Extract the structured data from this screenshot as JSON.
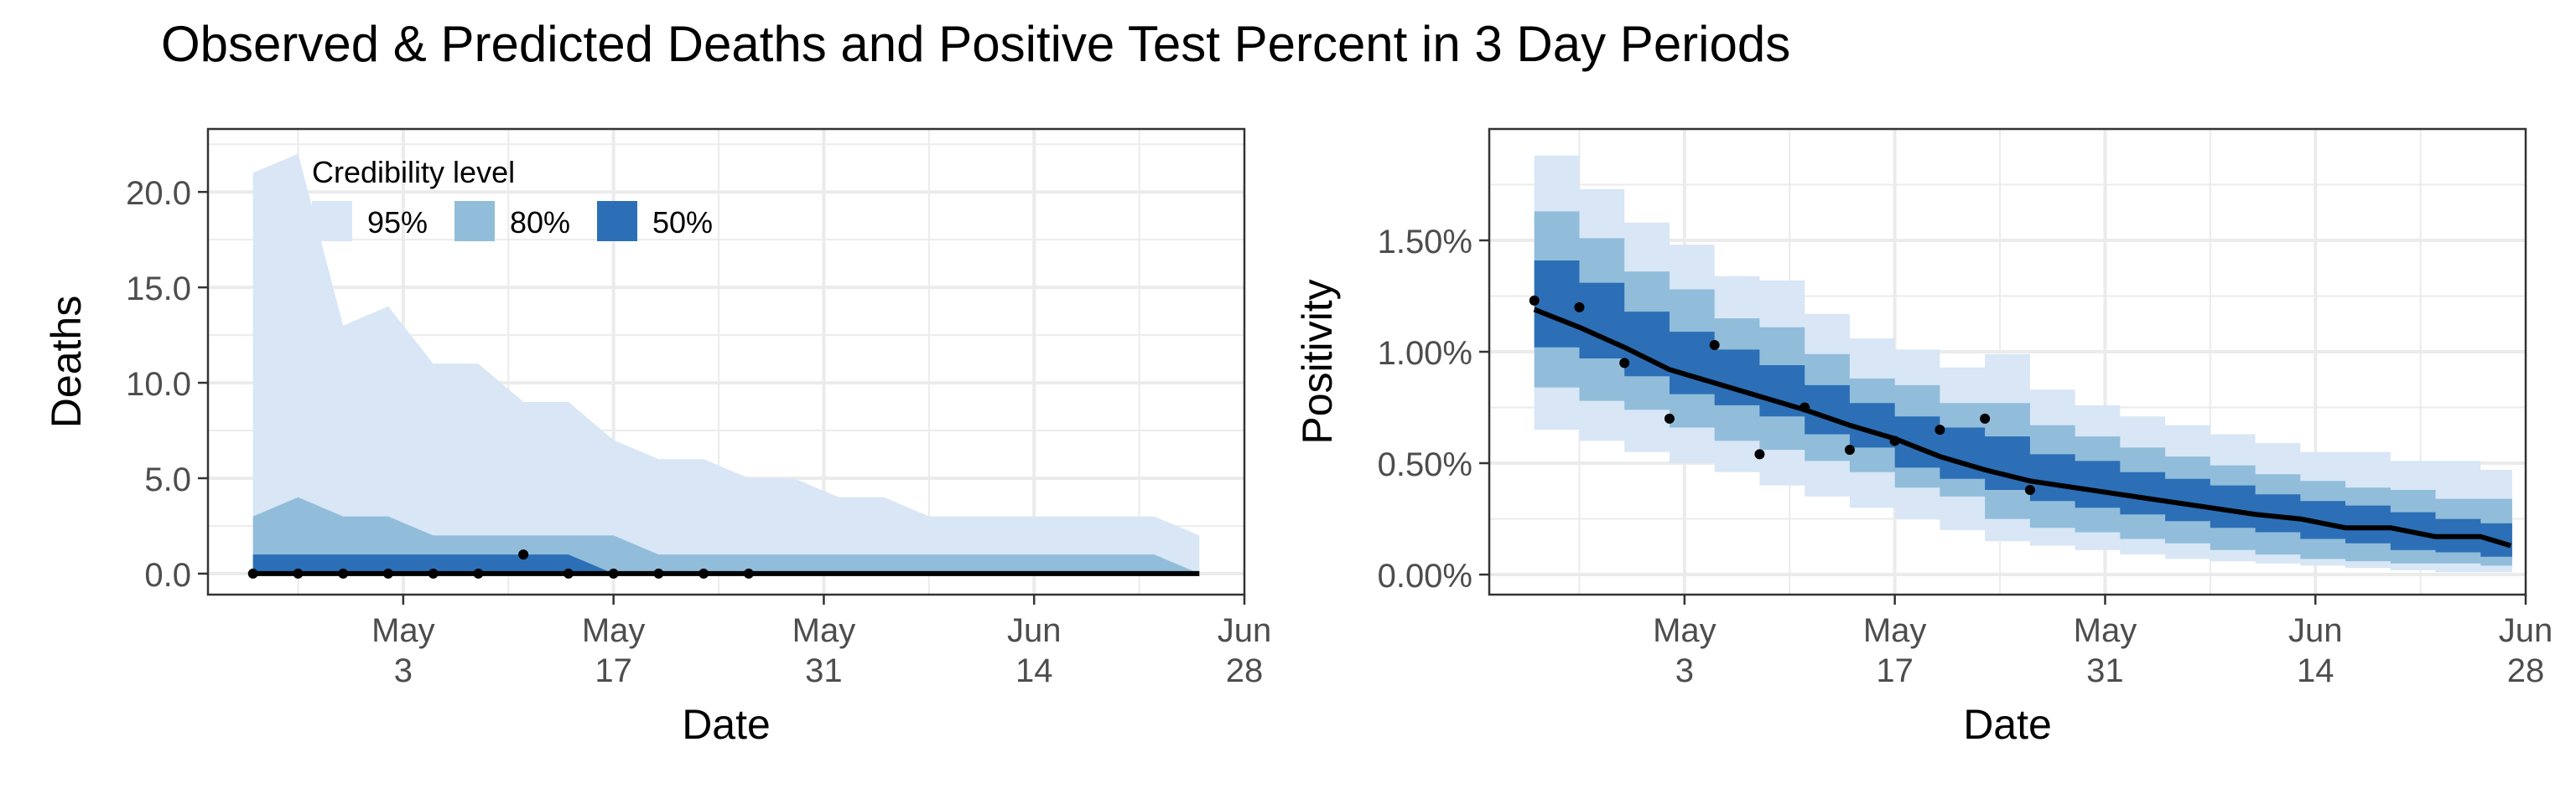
{
  "page": {
    "title": "Observed & Predicted Deaths and Positive Test Percent in 3 Day Periods"
  },
  "colors": {
    "ci95": "#D8E6F5",
    "ci80": "#91BDDB",
    "ci50": "#2C6FB6",
    "line": "#000000",
    "grid": "#EBEBEB",
    "frame": "#333333"
  },
  "chart_data": [
    {
      "type": "area",
      "xlabel": "Date",
      "ylabel": "Deaths",
      "x_ticks": [
        {
          "date": "2020-05-03",
          "line1": "May",
          "line2": "3"
        },
        {
          "date": "2020-05-17",
          "line1": "May",
          "line2": "17"
        },
        {
          "date": "2020-05-31",
          "line1": "May",
          "line2": "31"
        },
        {
          "date": "2020-06-14",
          "line1": "Jun",
          "line2": "14"
        },
        {
          "date": "2020-06-28",
          "line1": "Jun",
          "line2": "28"
        }
      ],
      "y_ticks": [
        "0.0",
        "5.0",
        "10.0",
        "15.0",
        "20.0"
      ],
      "y_tick_values": [
        0,
        5,
        10,
        15,
        20
      ],
      "xlim": [
        "2020-04-20",
        "2020-06-28"
      ],
      "ylim": [
        -1.1,
        23.3
      ],
      "grid": true,
      "legend": {
        "title": "Credibility level",
        "placement": "top-left",
        "items": [
          {
            "label": "95%",
            "color_key": "ci95"
          },
          {
            "label": "80%",
            "color_key": "ci80"
          },
          {
            "label": "50%",
            "color_key": "ci50"
          }
        ]
      },
      "band_dates": [
        "2020-04-23",
        "2020-04-26",
        "2020-04-29",
        "2020-05-02",
        "2020-05-05",
        "2020-05-08",
        "2020-05-11",
        "2020-05-14",
        "2020-05-17",
        "2020-05-20",
        "2020-05-23",
        "2020-05-26",
        "2020-05-29",
        "2020-06-01",
        "2020-06-04",
        "2020-06-07",
        "2020-06-10",
        "2020-06-13",
        "2020-06-16",
        "2020-06-19",
        "2020-06-22",
        "2020-06-25"
      ],
      "band_95": {
        "lower": [
          0,
          0,
          0,
          0,
          0,
          0,
          0,
          0,
          0,
          0,
          0,
          0,
          0,
          0,
          0,
          0,
          0,
          0,
          0,
          0,
          0,
          0
        ],
        "upper": [
          21,
          22,
          13,
          14,
          11,
          11,
          9,
          9,
          7,
          6,
          6,
          5,
          5,
          4,
          4,
          3,
          3,
          3,
          3,
          3,
          3,
          2
        ]
      },
      "band_80": {
        "lower": [
          0,
          0,
          0,
          0,
          0,
          0,
          0,
          0,
          0,
          0,
          0,
          0,
          0,
          0,
          0,
          0,
          0,
          0,
          0,
          0,
          0,
          0
        ],
        "upper": [
          3,
          4,
          3,
          3,
          2,
          2,
          2,
          2,
          2,
          1,
          1,
          1,
          1,
          1,
          1,
          1,
          1,
          1,
          1,
          1,
          1,
          0
        ]
      },
      "band_50": {
        "lower": [
          0,
          0,
          0,
          0,
          0,
          0,
          0,
          0,
          0,
          0,
          0,
          0,
          0,
          0,
          0,
          0,
          0,
          0,
          0,
          0,
          0,
          0
        ],
        "upper": [
          1,
          1,
          1,
          1,
          1,
          1,
          1,
          1,
          0,
          0,
          0,
          0,
          0,
          0,
          0,
          0,
          0,
          0,
          0,
          0,
          0,
          0
        ]
      },
      "median": [
        0,
        0,
        0,
        0,
        0,
        0,
        0,
        0,
        0,
        0,
        0,
        0,
        0,
        0,
        0,
        0,
        0,
        0,
        0,
        0,
        0,
        0
      ],
      "observed": [
        {
          "date": "2020-04-23",
          "value": 0
        },
        {
          "date": "2020-04-26",
          "value": 0
        },
        {
          "date": "2020-04-29",
          "value": 0
        },
        {
          "date": "2020-05-02",
          "value": 0
        },
        {
          "date": "2020-05-05",
          "value": 0
        },
        {
          "date": "2020-05-08",
          "value": 0
        },
        {
          "date": "2020-05-11",
          "value": 1
        },
        {
          "date": "2020-05-14",
          "value": 0
        },
        {
          "date": "2020-05-17",
          "value": 0
        },
        {
          "date": "2020-05-20",
          "value": 0
        },
        {
          "date": "2020-05-23",
          "value": 0
        },
        {
          "date": "2020-05-26",
          "value": 0
        }
      ]
    },
    {
      "type": "area",
      "xlabel": "Date",
      "ylabel": "Positivity",
      "x_ticks": [
        {
          "date": "2020-05-03",
          "line1": "May",
          "line2": "3"
        },
        {
          "date": "2020-05-17",
          "line1": "May",
          "line2": "17"
        },
        {
          "date": "2020-05-31",
          "line1": "May",
          "line2": "31"
        },
        {
          "date": "2020-06-14",
          "line1": "Jun",
          "line2": "14"
        },
        {
          "date": "2020-06-28",
          "line1": "Jun",
          "line2": "28"
        }
      ],
      "y_ticks": [
        "0.00%",
        "0.50%",
        "1.00%",
        "1.50%"
      ],
      "y_tick_values": [
        0,
        0.005,
        0.01,
        0.015
      ],
      "xlim": [
        "2020-04-20",
        "2020-06-28"
      ],
      "ylim": [
        -0.0009,
        0.02
      ],
      "grid": true,
      "band_dates": [
        "2020-04-23",
        "2020-04-26",
        "2020-04-29",
        "2020-05-02",
        "2020-05-05",
        "2020-05-08",
        "2020-05-11",
        "2020-05-14",
        "2020-05-17",
        "2020-05-20",
        "2020-05-23",
        "2020-05-26",
        "2020-05-29",
        "2020-06-01",
        "2020-06-04",
        "2020-06-07",
        "2020-06-10",
        "2020-06-13",
        "2020-06-16",
        "2020-06-19",
        "2020-06-22",
        "2020-06-25"
      ],
      "band_95": {
        "lower": [
          0.0065,
          0.006,
          0.0055,
          0.005,
          0.0046,
          0.004,
          0.0035,
          0.003,
          0.0025,
          0.002,
          0.0015,
          0.0013,
          0.0011,
          0.0009,
          0.0007,
          0.0006,
          0.0005,
          0.0004,
          0.0003,
          0.0002,
          0.0001,
          0.0001
        ],
        "upper": [
          0.0188,
          0.0173,
          0.0158,
          0.0148,
          0.0134,
          0.0132,
          0.0117,
          0.0106,
          0.0101,
          0.0093,
          0.0099,
          0.0083,
          0.0076,
          0.0071,
          0.0067,
          0.0063,
          0.0059,
          0.0055,
          0.0055,
          0.0051,
          0.0051,
          0.0047
        ]
      },
      "band_80": {
        "lower": [
          0.0084,
          0.0078,
          0.0074,
          0.0066,
          0.006,
          0.0056,
          0.0051,
          0.0046,
          0.0039,
          0.0035,
          0.0025,
          0.0021,
          0.0019,
          0.0016,
          0.0014,
          0.0011,
          0.0009,
          0.0007,
          0.0006,
          0.0005,
          0.0005,
          0.0004
        ],
        "upper": [
          0.0163,
          0.0151,
          0.0136,
          0.0128,
          0.0115,
          0.0111,
          0.0099,
          0.0088,
          0.0085,
          0.0077,
          0.0077,
          0.0067,
          0.0062,
          0.0057,
          0.0053,
          0.0049,
          0.0045,
          0.0042,
          0.0039,
          0.0038,
          0.0034,
          0.0034
        ]
      },
      "band_50": {
        "lower": [
          0.0102,
          0.0097,
          0.0089,
          0.0081,
          0.0076,
          0.0071,
          0.0063,
          0.0057,
          0.0048,
          0.0043,
          0.0038,
          0.0033,
          0.003,
          0.0027,
          0.0024,
          0.0021,
          0.0019,
          0.0016,
          0.0014,
          0.0011,
          0.001,
          0.0008
        ],
        "upper": [
          0.0141,
          0.0131,
          0.0118,
          0.0109,
          0.0101,
          0.0094,
          0.0085,
          0.0077,
          0.0071,
          0.0066,
          0.0062,
          0.0054,
          0.0051,
          0.0046,
          0.0043,
          0.004,
          0.0036,
          0.0033,
          0.0031,
          0.0028,
          0.0025,
          0.0023
        ]
      },
      "median": [
        0.0119,
        0.0111,
        0.0102,
        0.0092,
        0.0086,
        0.008,
        0.0074,
        0.0067,
        0.0061,
        0.0053,
        0.0047,
        0.0042,
        0.0039,
        0.0036,
        0.0033,
        0.003,
        0.0027,
        0.0025,
        0.0021,
        0.0021,
        0.0017,
        0.0017
      ],
      "median_end": {
        "date": "2020-06-27",
        "value": 0.0013
      },
      "observed": [
        {
          "date": "2020-04-23",
          "value": 0.0123
        },
        {
          "date": "2020-04-26",
          "value": 0.012
        },
        {
          "date": "2020-04-29",
          "value": 0.0095
        },
        {
          "date": "2020-05-02",
          "value": 0.007
        },
        {
          "date": "2020-05-05",
          "value": 0.0103
        },
        {
          "date": "2020-05-08",
          "value": 0.0054
        },
        {
          "date": "2020-05-11",
          "value": 0.0075
        },
        {
          "date": "2020-05-14",
          "value": 0.0056
        },
        {
          "date": "2020-05-17",
          "value": 0.006
        },
        {
          "date": "2020-05-20",
          "value": 0.0065
        },
        {
          "date": "2020-05-23",
          "value": 0.007
        },
        {
          "date": "2020-05-26",
          "value": 0.0038
        }
      ]
    }
  ]
}
